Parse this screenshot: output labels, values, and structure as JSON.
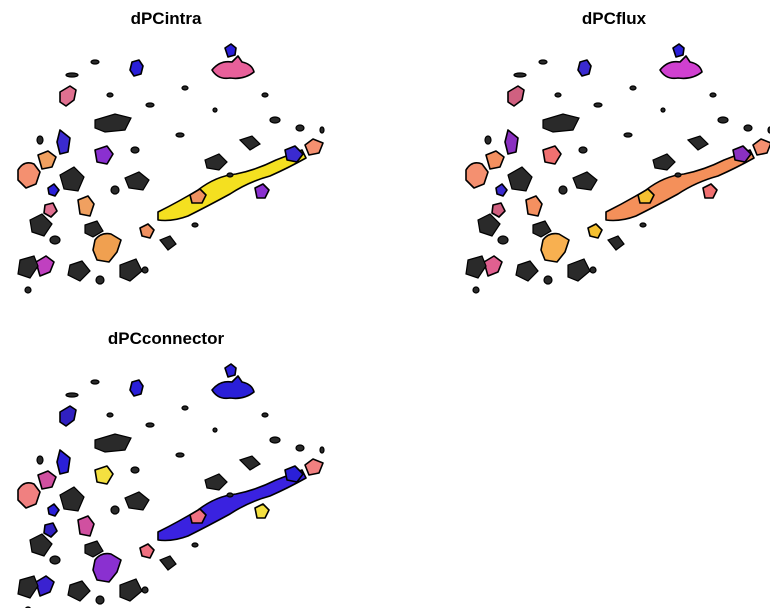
{
  "panels": [
    {
      "title": "dPCintra"
    },
    {
      "title": "dPCflux"
    },
    {
      "title": "dPCconnector"
    }
  ]
}
